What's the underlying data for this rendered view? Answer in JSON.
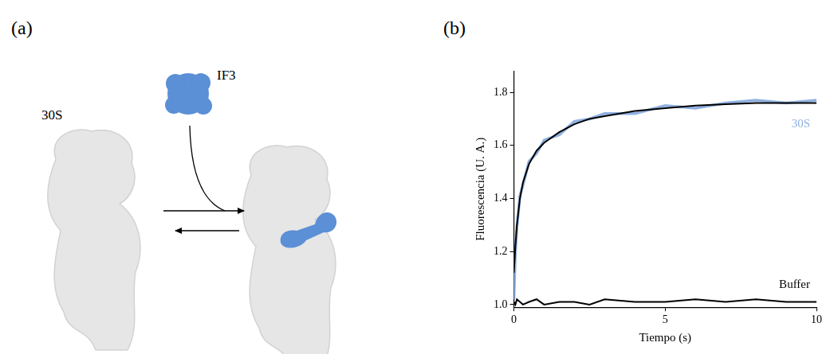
{
  "diagram": {
    "panel_label": "(a)",
    "subunit": "30S",
    "factor": "IF3"
  },
  "chart_data": {
    "panel_label": "(b)",
    "type": "line",
    "x_label": "Tiempo (s)",
    "y_label": "Fluorescencia (U. A.)",
    "x": [
      0,
      0.05,
      0.1,
      0.2,
      0.3,
      0.5,
      0.75,
      1,
      1.5,
      2,
      2.5,
      3,
      4,
      5,
      6,
      7,
      8,
      9,
      10
    ],
    "series": [
      {
        "name": "30S",
        "color": "#8fb0e0",
        "values": [
          1.02,
          1.2,
          1.29,
          1.41,
          1.45,
          1.54,
          1.57,
          1.62,
          1.64,
          1.69,
          1.7,
          1.72,
          1.72,
          1.75,
          1.74,
          1.76,
          1.77,
          1.76,
          1.77
        ]
      },
      {
        "color": "#000000",
        "values": [
          1.12,
          1.22,
          1.3,
          1.4,
          1.46,
          1.53,
          1.58,
          1.61,
          1.65,
          1.68,
          1.7,
          1.71,
          1.73,
          1.74,
          1.75,
          1.755,
          1.76,
          1.76,
          1.76
        ]
      },
      {
        "name": "Buffer",
        "color": "#000000",
        "values": [
          1.01,
          1.0,
          1.02,
          1.01,
          1.0,
          1.01,
          1.02,
          1.0,
          1.01,
          1.01,
          1.0,
          1.02,
          1.01,
          1.01,
          1.02,
          1.01,
          1.02,
          1.01,
          1.01
        ]
      }
    ],
    "xlim": [
      0,
      10
    ],
    "xticks": [
      0,
      5,
      10
    ],
    "ylim": [
      0.99,
      1.88
    ],
    "yticks": [
      {
        "value": 1.0,
        "label": "1.0"
      },
      {
        "value": 1.2,
        "label": "1.2"
      },
      {
        "value": 1.4,
        "label": "1.4"
      },
      {
        "value": 1.6,
        "label": "1.6"
      },
      {
        "value": 1.8,
        "label": "1.8"
      }
    ],
    "grid": false
  }
}
